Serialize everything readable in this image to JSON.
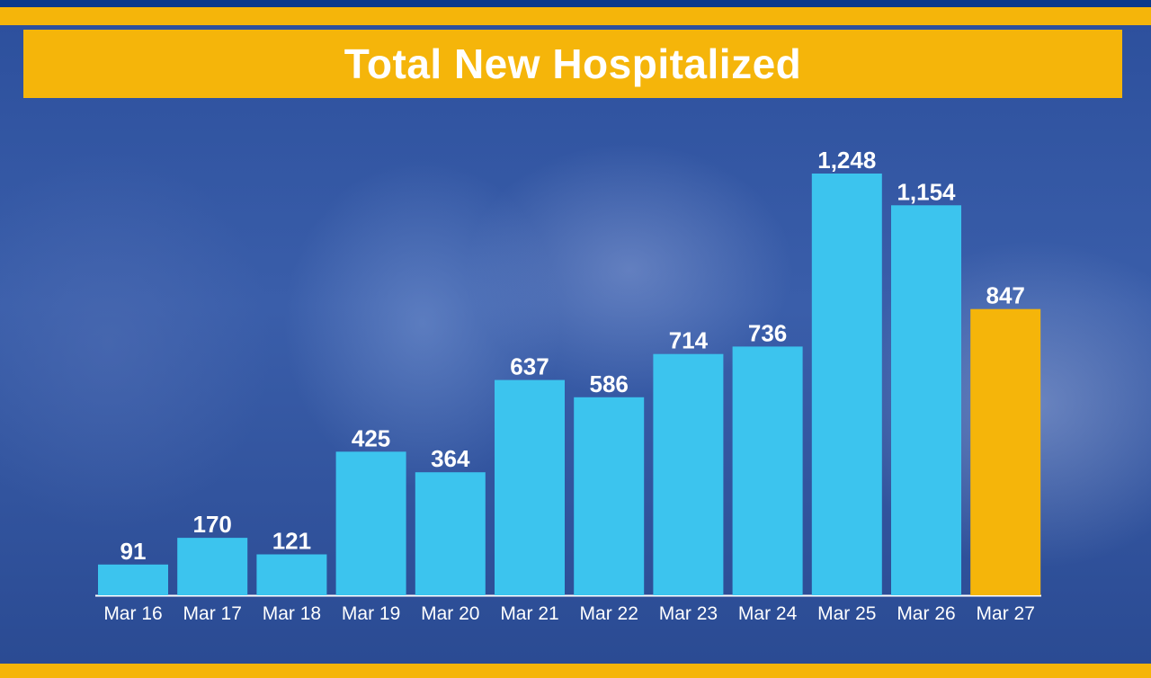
{
  "colors": {
    "bar": "#3cc4ee",
    "highlight": "#f5b50a",
    "title_band": "#f5b50a",
    "text": "#ffffff"
  },
  "chart_data": {
    "type": "bar",
    "title": "Total New Hospitalized",
    "xlabel": "",
    "ylabel": "",
    "categories": [
      "Mar 16",
      "Mar 17",
      "Mar 18",
      "Mar 19",
      "Mar 20",
      "Mar 21",
      "Mar 22",
      "Mar 23",
      "Mar 24",
      "Mar 25",
      "Mar 26",
      "Mar 27"
    ],
    "values": [
      91,
      170,
      121,
      425,
      364,
      637,
      586,
      714,
      736,
      1248,
      1154,
      847
    ],
    "value_labels": [
      "91",
      "170",
      "121",
      "425",
      "364",
      "637",
      "586",
      "714",
      "736",
      "1,248",
      "1,154",
      "847"
    ],
    "highlighted_category": "Mar 27",
    "ylim": [
      0,
      1248
    ],
    "grid": false,
    "legend": "none"
  }
}
